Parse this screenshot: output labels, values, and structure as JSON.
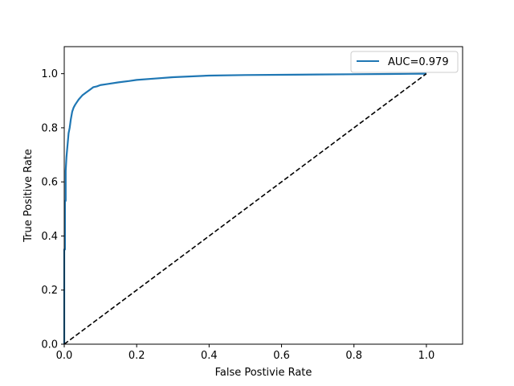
{
  "chart_data": {
    "type": "line",
    "title": "",
    "xlabel": "False Postivie Rate",
    "ylabel": "True Positive Rate",
    "xlim": [
      0.0,
      1.1
    ],
    "ylim": [
      0.0,
      1.1
    ],
    "xticks": [
      "0.0",
      "0.2",
      "0.4",
      "0.6",
      "0.8",
      "1.0"
    ],
    "yticks": [
      "0.0",
      "0.2",
      "0.4",
      "0.6",
      "0.8",
      "1.0"
    ],
    "grid": false,
    "legend_position": "top-right",
    "series": [
      {
        "name": "AUC=0.979",
        "color": "#1f77b4",
        "style": "solid",
        "x": [
          0.0,
          0.0,
          0.002,
          0.002,
          0.004,
          0.004,
          0.006,
          0.008,
          0.01,
          0.012,
          0.015,
          0.018,
          0.022,
          0.026,
          0.03,
          0.035,
          0.04,
          0.05,
          0.06,
          0.07,
          0.08,
          0.09,
          0.1,
          0.12,
          0.15,
          0.18,
          0.2,
          0.25,
          0.3,
          0.35,
          0.4,
          0.5,
          0.6,
          0.7,
          0.8,
          0.9,
          1.0
        ],
        "y": [
          0.0,
          0.35,
          0.35,
          0.53,
          0.53,
          0.64,
          0.69,
          0.72,
          0.75,
          0.78,
          0.8,
          0.83,
          0.86,
          0.875,
          0.885,
          0.895,
          0.905,
          0.92,
          0.93,
          0.94,
          0.95,
          0.953,
          0.958,
          0.962,
          0.968,
          0.973,
          0.977,
          0.982,
          0.987,
          0.99,
          0.993,
          0.995,
          0.996,
          0.997,
          0.998,
          0.999,
          1.0
        ]
      },
      {
        "name": "",
        "color": "#000000",
        "style": "dashed",
        "x": [
          0.0,
          1.0
        ],
        "y": [
          0.0,
          1.0
        ]
      }
    ]
  }
}
